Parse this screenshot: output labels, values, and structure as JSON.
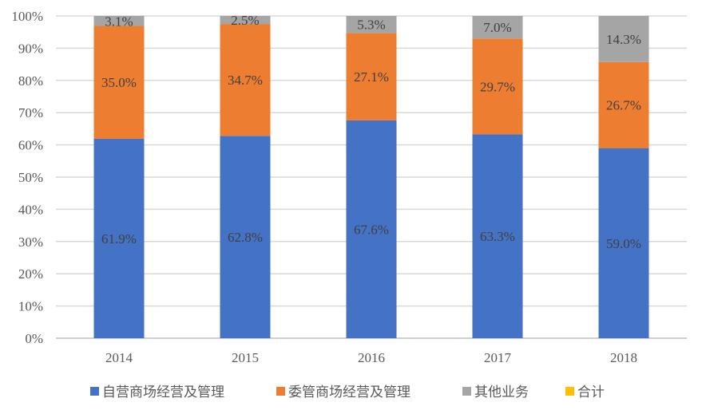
{
  "chart_data": {
    "type": "bar",
    "stacked": true,
    "title": "",
    "xlabel": "",
    "ylabel": "",
    "ylim": [
      0,
      100
    ],
    "yticks": [
      "0%",
      "10%",
      "20%",
      "30%",
      "40%",
      "50%",
      "60%",
      "70%",
      "80%",
      "90%",
      "100%"
    ],
    "grid": true,
    "legend_position": "bottom",
    "categories": [
      "2014",
      "2015",
      "2016",
      "2017",
      "2018"
    ],
    "series": [
      {
        "name": "自营商场经营及管理",
        "color": "#4472C4",
        "values": [
          61.9,
          62.8,
          67.6,
          63.3,
          59.0
        ],
        "labels": [
          "61.9%",
          "62.8%",
          "67.6%",
          "63.3%",
          "59.0%"
        ]
      },
      {
        "name": "委管商场经营及管理",
        "color": "#ED7D31",
        "values": [
          35.0,
          34.7,
          27.1,
          29.7,
          26.7
        ],
        "labels": [
          "35.0%",
          "34.7%",
          "27.1%",
          "29.7%",
          "26.7%"
        ]
      },
      {
        "name": "其他业务",
        "color": "#A5A5A5",
        "values": [
          3.1,
          2.5,
          5.3,
          7.0,
          14.3
        ],
        "labels": [
          "3.1%",
          "2.5%",
          "5.3%",
          "7.0%",
          "14.3%"
        ]
      },
      {
        "name": "合计",
        "color": "#FFC000",
        "values": [
          0,
          0,
          0,
          0,
          0
        ],
        "labels": []
      }
    ]
  }
}
